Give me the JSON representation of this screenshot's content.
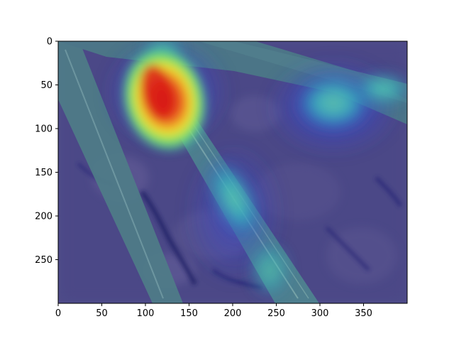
{
  "figure": {
    "image": {
      "subject": "leaf-blades-on-soil-with-attention-heatmap",
      "colormap": "jet"
    },
    "x_axis": {
      "range": [
        0,
        400
      ],
      "ticks": [
        {
          "value": 0,
          "label": "0"
        },
        {
          "value": 50,
          "label": "50"
        },
        {
          "value": 100,
          "label": "100"
        },
        {
          "value": 150,
          "label": "150"
        },
        {
          "value": 200,
          "label": "200"
        },
        {
          "value": 250,
          "label": "250"
        },
        {
          "value": 300,
          "label": "300"
        },
        {
          "value": 350,
          "label": "350"
        }
      ]
    },
    "y_axis": {
      "range": [
        0,
        300
      ],
      "inverted": true,
      "ticks": [
        {
          "value": 0,
          "label": "0"
        },
        {
          "value": 50,
          "label": "50"
        },
        {
          "value": 100,
          "label": "100"
        },
        {
          "value": 150,
          "label": "150"
        },
        {
          "value": 200,
          "label": "200"
        },
        {
          "value": 250,
          "label": "250"
        }
      ]
    },
    "colors": {
      "soil": "#5a5478",
      "leaf": "#4a7d86",
      "hot": "#e02020",
      "warm": "#f0e030",
      "cool": "#30c8c0",
      "cold": "#3030c0"
    }
  }
}
